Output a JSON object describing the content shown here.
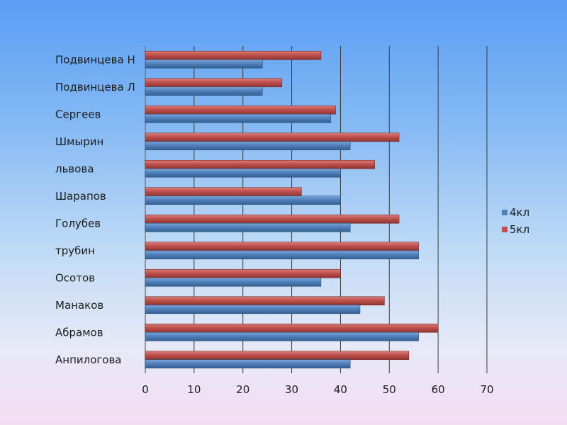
{
  "chart_data": {
    "type": "bar",
    "orientation": "horizontal",
    "categories": [
      "Анпилогова",
      "Абрамов",
      "Манаков",
      "Осотов",
      "трубин",
      "Голубев",
      "Шарапов",
      "львова",
      "Шмырин",
      "Сергеев",
      "Подвинцева Л",
      "Подвинцева Н"
    ],
    "series": [
      {
        "name": "4кл",
        "color": "#4f81bd",
        "values": [
          42,
          56,
          44,
          36,
          56,
          42,
          40,
          40,
          42,
          38,
          24,
          24
        ]
      },
      {
        "name": "5кл",
        "color": "#c0504d",
        "values": [
          54,
          60,
          49,
          40,
          56,
          52,
          32,
          47,
          52,
          39,
          28,
          36
        ]
      }
    ],
    "xlim": [
      0,
      70
    ],
    "xticks": [
      0,
      10,
      20,
      30,
      40,
      50,
      60,
      70
    ],
    "grid": true,
    "legend_position": "right"
  }
}
